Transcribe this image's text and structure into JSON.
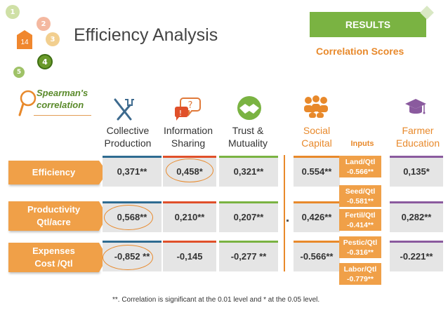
{
  "nav": {
    "steps": [
      "1",
      "2",
      "3",
      "4",
      "5"
    ],
    "page_number": "14"
  },
  "header": {
    "title": "Efficiency Analysis",
    "results_label": "RESULTS",
    "subtitle": "Correlation Scores"
  },
  "method": {
    "line1": "Spearman's",
    "line2": "correlation"
  },
  "columns": [
    {
      "line1": "Collective",
      "line2": "Production",
      "icon": "tools-icon"
    },
    {
      "line1": "Information",
      "line2": "Sharing",
      "icon": "speech-bubble-icon"
    },
    {
      "line1": "Trust &",
      "line2": "Mutuality",
      "icon": "handshake-icon"
    },
    {
      "line1": "Social",
      "line2": "Capital",
      "icon": "people-icon"
    },
    {
      "line1": "Inputs",
      "line2": ""
    },
    {
      "line1": "Farmer",
      "line2": "Education",
      "icon": "graduation-cap-icon"
    }
  ],
  "rows": [
    {
      "line1": "Efficiency",
      "line2": "",
      "values": [
        "0,371**",
        "0,458*",
        "0,321**",
        "0.554**",
        "0,135*"
      ]
    },
    {
      "line1": "Productivity",
      "line2": "Qtl/acre",
      "values": [
        "0,568**",
        "0,210**",
        "0,207**",
        "0,426**",
        "0,282**"
      ]
    },
    {
      "line1": "Expenses",
      "line2": "Cost /Qtl",
      "values": [
        "-0,852 **",
        "-0,145",
        "-0,277 **",
        "-0.566**",
        "-0.221**"
      ]
    }
  ],
  "inputs": [
    {
      "label": "Land/Qtl",
      "value": "-0.566**"
    },
    {
      "label": "Seed/Qtl",
      "value": "-0.581**"
    },
    {
      "label": "Fertil/Qtl",
      "value": "-0.414**"
    },
    {
      "label": "Pestic/Qtl",
      "value": "-0.316**"
    },
    {
      "label": "Labor/Qtl",
      "value": "-0.779**"
    }
  ],
  "footnote": "**. Correlation is significant at the 0.01 level and * at the 0.05 level.",
  "colors": {
    "green": "#7ab342",
    "orange": "#f0a048",
    "purple": "#8a5a9e",
    "gray_cell": "#e5e5e5"
  }
}
